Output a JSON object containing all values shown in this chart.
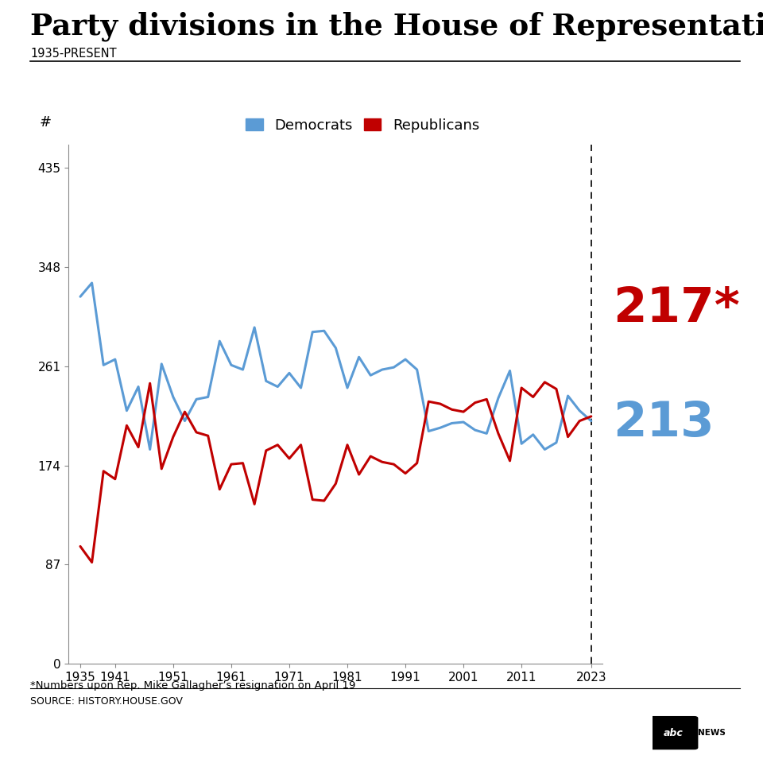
{
  "title": "Party divisions in the House of Representatives",
  "subtitle": "1935-PRESENT",
  "dem_color": "#5B9BD5",
  "rep_color": "#C00000",
  "yticks": [
    0,
    87,
    174,
    261,
    348,
    435
  ],
  "xticks": [
    1935,
    1941,
    1951,
    1961,
    1971,
    1981,
    1991,
    2001,
    2011,
    2023
  ],
  "xlim": [
    1933,
    2025
  ],
  "ylim": [
    0,
    455
  ],
  "final_rep": 217,
  "final_dem": 213,
  "dashed_x": 2023,
  "years": [
    1935,
    1937,
    1939,
    1941,
    1943,
    1945,
    1947,
    1949,
    1951,
    1953,
    1955,
    1957,
    1959,
    1961,
    1963,
    1965,
    1967,
    1969,
    1971,
    1973,
    1975,
    1977,
    1979,
    1981,
    1983,
    1985,
    1987,
    1989,
    1991,
    1993,
    1995,
    1997,
    1999,
    2001,
    2003,
    2005,
    2007,
    2009,
    2011,
    2013,
    2015,
    2017,
    2019,
    2021,
    2023
  ],
  "democrats": [
    322,
    334,
    262,
    267,
    222,
    243,
    188,
    263,
    234,
    213,
    232,
    234,
    283,
    262,
    258,
    295,
    248,
    243,
    255,
    242,
    291,
    292,
    277,
    242,
    269,
    253,
    258,
    260,
    267,
    258,
    204,
    207,
    211,
    212,
    205,
    202,
    233,
    257,
    193,
    201,
    188,
    194,
    235,
    222,
    213
  ],
  "republicans": [
    103,
    89,
    169,
    162,
    209,
    190,
    246,
    171,
    199,
    221,
    203,
    200,
    153,
    175,
    176,
    140,
    187,
    192,
    180,
    192,
    144,
    143,
    158,
    192,
    166,
    182,
    177,
    175,
    167,
    176,
    230,
    228,
    223,
    221,
    229,
    232,
    202,
    178,
    242,
    234,
    247,
    241,
    199,
    213,
    217
  ],
  "footnote": "*Numbers upon Rep. Mike Gallagher’s resignation on April 19",
  "source": "SOURCE: HISTORY.HOUSE.GOV",
  "abc_news": "abc NEWS",
  "hash_label": "#"
}
